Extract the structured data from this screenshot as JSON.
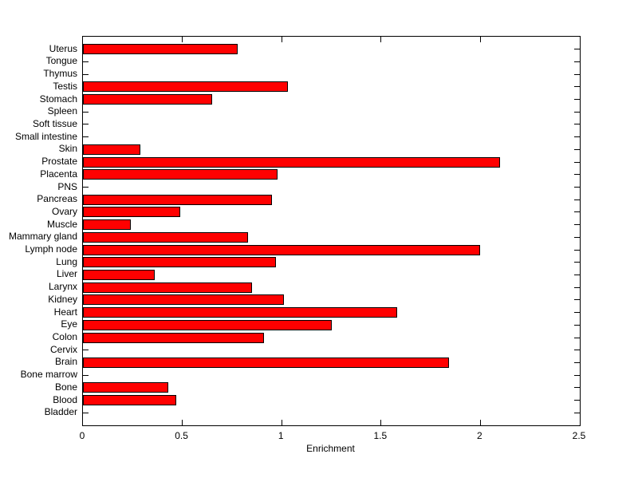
{
  "chart_data": {
    "type": "bar",
    "orientation": "horizontal",
    "title": "",
    "xlabel": "Enrichment",
    "ylabel": "",
    "xlim": [
      0,
      2.5
    ],
    "xticks": [
      0,
      0.5,
      1,
      1.5,
      2,
      2.5
    ],
    "xtick_labels": [
      "0",
      "0.5",
      "1",
      "1.5",
      "2",
      "2.5"
    ],
    "grid": false,
    "legend": false,
    "bar_color": "#FF0000",
    "bar_edge_color": "#000000",
    "axis_color": "#000000",
    "background_color": "#FFFFFF",
    "categories_top_to_bottom": [
      "Uterus",
      "Tongue",
      "Thymus",
      "Testis",
      "Stomach",
      "Spleen",
      "Soft tissue",
      "Small intestine",
      "Skin",
      "Prostate",
      "Placenta",
      "PNS",
      "Pancreas",
      "Ovary",
      "Muscle",
      "Mammary gland",
      "Lymph node",
      "Lung",
      "Liver",
      "Larynx",
      "Kidney",
      "Heart",
      "Eye",
      "Colon",
      "Cervix",
      "Brain",
      "Bone marrow",
      "Bone",
      "Blood",
      "Bladder"
    ],
    "values_top_to_bottom": [
      0.78,
      0,
      0,
      1.03,
      0.65,
      0,
      0,
      0,
      0.29,
      2.1,
      0.98,
      0,
      0.95,
      0.49,
      0.24,
      0.83,
      2.0,
      0.97,
      0.36,
      0.85,
      1.01,
      1.58,
      1.25,
      0.91,
      0,
      1.84,
      0,
      0.43,
      0.47,
      0
    ]
  }
}
